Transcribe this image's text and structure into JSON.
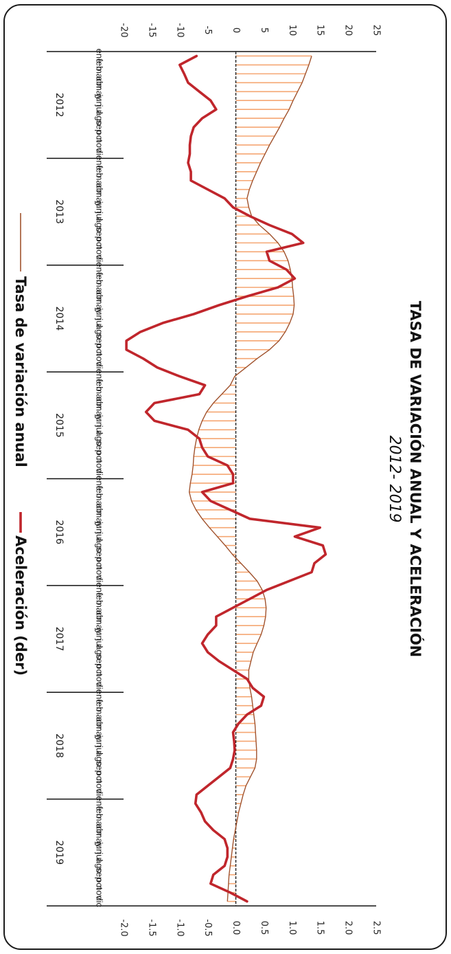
{
  "chart_data": {
    "type": "line",
    "title": "TASA DE VARIACIÓN ANUAL Y ACELERACIÓN",
    "subtitle": "2012- 2019",
    "months": [
      "ene",
      "feb",
      "mar",
      "abr",
      "may",
      "jun",
      "jul",
      "ago",
      "sep",
      "oct",
      "nov",
      "dic"
    ],
    "years": [
      "2012",
      "2013",
      "2014",
      "2015",
      "2016",
      "2017",
      "2018",
      "2019"
    ],
    "left_axis": {
      "range": [
        -20,
        25
      ],
      "ticks": [
        -20,
        -15,
        -10,
        -5,
        0,
        5,
        10,
        15,
        20,
        25
      ]
    },
    "right_axis": {
      "range": [
        -2.0,
        2.5
      ],
      "ticks": [
        "-2.0",
        "-1.5",
        "-1.0",
        "-0.5",
        "0.0",
        "0.5",
        "1.0",
        "1.5",
        "2.0",
        "2.5"
      ]
    },
    "grid": false,
    "legend_position": "bottom",
    "series": [
      {
        "name": "Tasa de variación anual",
        "axis": "left",
        "color": "#a0522d",
        "fill_color": "#f5a672",
        "values": [
          13.5,
          13.0,
          12.4,
          11.8,
          11.0,
          10.2,
          9.5,
          8.6,
          7.8,
          6.9,
          6.0,
          5.2,
          4.4,
          3.7,
          3.0,
          2.4,
          2.0,
          2.3,
          2.8,
          4.2,
          6.0,
          7.5,
          8.6,
          9.3,
          9.7,
          10.0,
          10.1,
          10.3,
          10.4,
          10.2,
          9.6,
          8.8,
          7.7,
          6.0,
          3.8,
          1.8,
          -0.2,
          -1.0,
          -2.5,
          -4.0,
          -5.2,
          -6.0,
          -6.6,
          -7.0,
          -7.3,
          -7.5,
          -7.6,
          -7.8,
          -8.1,
          -8.3,
          -7.9,
          -7.1,
          -6.0,
          -4.7,
          -3.3,
          -1.9,
          -0.6,
          0.9,
          2.4,
          3.8,
          4.7,
          5.2,
          5.4,
          5.3,
          5.0,
          4.5,
          3.8,
          3.1,
          2.7,
          2.3,
          2.3,
          2.5,
          2.8,
          3.0,
          3.2,
          3.4,
          3.5,
          3.6,
          3.7,
          3.7,
          3.4,
          2.6,
          1.8,
          1.3,
          0.9,
          0.5,
          0.2,
          -0.1,
          -0.4,
          -0.6,
          -0.8,
          -1.0,
          -1.2,
          -1.3,
          -1.4,
          -1.5
        ]
      },
      {
        "name": "Aceleración (der)",
        "axis": "right",
        "color": "#c0262c",
        "values": [
          -0.7,
          -1.0,
          -0.92,
          -0.85,
          -0.65,
          -0.45,
          -0.35,
          -0.6,
          -0.75,
          -0.8,
          -0.82,
          -0.82,
          -0.85,
          -0.8,
          -0.8,
          -0.5,
          -0.2,
          -0.05,
          0.25,
          0.6,
          1.0,
          1.2,
          0.55,
          0.6,
          0.9,
          1.05,
          0.75,
          0.2,
          -0.3,
          -0.75,
          -1.3,
          -1.7,
          -1.95,
          -1.95,
          -1.65,
          -1.4,
          -1.0,
          -0.55,
          -0.65,
          -1.45,
          -1.6,
          -1.45,
          -0.85,
          -0.65,
          -0.6,
          -0.5,
          -0.15,
          -0.05,
          -0.05,
          -0.6,
          -0.45,
          -0.1,
          0.25,
          1.5,
          1.05,
          1.55,
          1.6,
          1.4,
          1.35,
          0.95,
          0.55,
          0.25,
          -0.05,
          -0.35,
          -0.35,
          -0.5,
          -0.6,
          -0.5,
          -0.3,
          -0.05,
          0.2,
          0.3,
          0.5,
          0.45,
          0.2,
          0.05,
          -0.05,
          -0.03,
          -0.02,
          -0.05,
          -0.1,
          -0.3,
          -0.5,
          -0.7,
          -0.72,
          -0.62,
          -0.55,
          -0.4,
          -0.2,
          -0.15,
          -0.15,
          -0.2,
          -0.4,
          -0.45,
          -0.1,
          0.2
        ]
      }
    ]
  }
}
